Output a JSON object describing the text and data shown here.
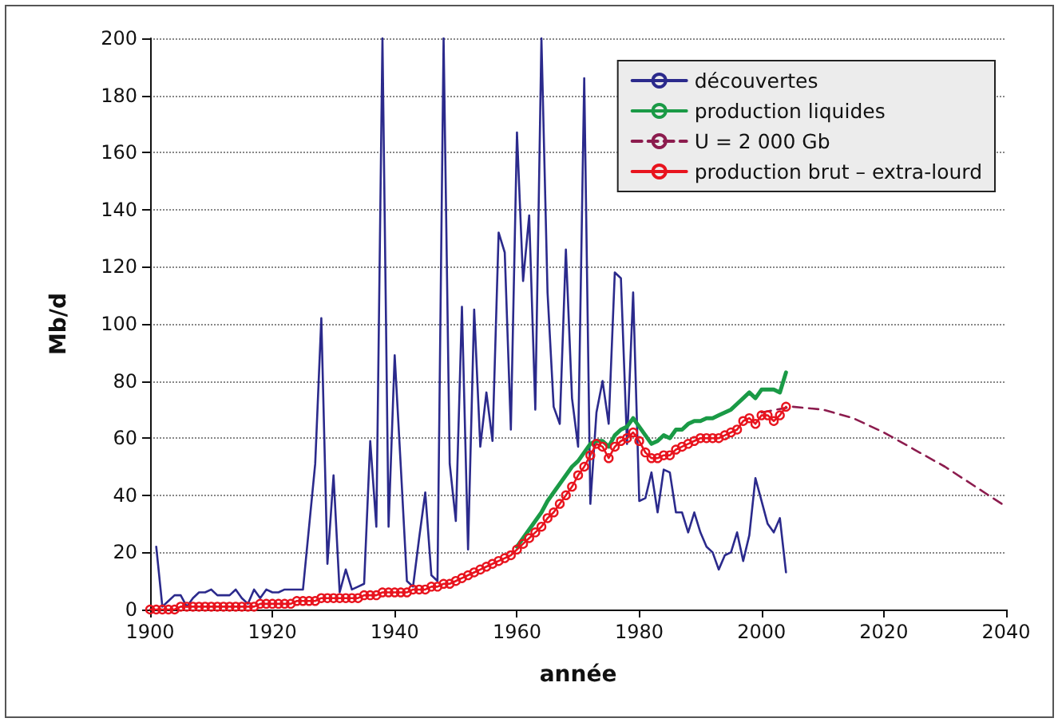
{
  "chart_data": {
    "type": "line",
    "xlabel": "année",
    "ylabel": "Mb/d",
    "xlim": [
      1900,
      2040
    ],
    "xticks": [
      1900,
      1920,
      1940,
      1960,
      1980,
      2000,
      2020,
      2040
    ],
    "ylim": [
      0,
      200
    ],
    "yticks": [
      0,
      20,
      40,
      60,
      80,
      100,
      120,
      140,
      160,
      180,
      200
    ],
    "grid": "y",
    "legend": "top right",
    "series": [
      {
        "name": "découvertes",
        "color": "#2b2a8c",
        "marker": "none",
        "line_style": "solid",
        "x": [
          1901,
          1902,
          1903,
          1904,
          1905,
          1906,
          1907,
          1908,
          1909,
          1910,
          1911,
          1912,
          1913,
          1914,
          1915,
          1916,
          1917,
          1918,
          1919,
          1920,
          1921,
          1922,
          1923,
          1924,
          1925,
          1926,
          1927,
          1928,
          1929,
          1930,
          1931,
          1932,
          1933,
          1934,
          1935,
          1936,
          1937,
          1938,
          1939,
          1940,
          1941,
          1942,
          1943,
          1944,
          1945,
          1946,
          1947,
          1948,
          1949,
          1950,
          1951,
          1952,
          1953,
          1954,
          1955,
          1956,
          1957,
          1958,
          1959,
          1960,
          1961,
          1962,
          1963,
          1964,
          1965,
          1966,
          1967,
          1968,
          1969,
          1970,
          1971,
          1972,
          1973,
          1974,
          1975,
          1976,
          1977,
          1978,
          1979,
          1980,
          1981,
          1982,
          1983,
          1984,
          1985,
          1986,
          1987,
          1988,
          1989,
          1990,
          1991,
          1992,
          1993,
          1994,
          1995,
          1996,
          1997,
          1998,
          1999,
          2000,
          2001,
          2002,
          2003,
          2004
        ],
        "values": [
          22,
          1,
          3,
          5,
          5,
          1,
          4,
          6,
          6,
          7,
          5,
          5,
          5,
          7,
          4,
          2,
          7,
          4,
          7,
          6,
          6,
          7,
          7,
          7,
          7,
          29,
          51,
          102,
          16,
          47,
          6,
          14,
          7,
          8,
          9,
          59,
          29,
          200,
          29,
          89,
          50,
          10,
          8,
          25,
          41,
          12,
          10,
          200,
          51,
          31,
          106,
          21,
          105,
          57,
          76,
          59,
          132,
          125,
          63,
          167,
          115,
          138,
          70,
          200,
          111,
          71,
          65,
          126,
          74,
          57,
          186,
          37,
          69,
          80,
          65,
          118,
          116,
          58,
          111,
          38,
          39,
          48,
          34,
          49,
          48,
          34,
          34,
          27,
          34,
          27,
          22,
          20,
          14,
          19,
          20,
          27,
          17,
          26,
          46,
          38,
          30,
          27,
          32,
          13
        ]
      },
      {
        "name": "production liquides",
        "color": "#1a9a46",
        "marker": "none",
        "line_style": "solid",
        "x": [
          1960,
          1961,
          1962,
          1963,
          1964,
          1965,
          1966,
          1967,
          1968,
          1969,
          1970,
          1971,
          1972,
          1973,
          1974,
          1975,
          1976,
          1977,
          1978,
          1979,
          1980,
          1981,
          1982,
          1983,
          1984,
          1985,
          1986,
          1987,
          1988,
          1989,
          1990,
          1991,
          1992,
          1993,
          1994,
          1995,
          1996,
          1997,
          1998,
          1999,
          2000,
          2001,
          2002,
          2003,
          2004
        ],
        "values": [
          22,
          25,
          28,
          31,
          34,
          38,
          41,
          44,
          47,
          50,
          52,
          55,
          58,
          59,
          59,
          57,
          61,
          63,
          64,
          67,
          64,
          61,
          58,
          59,
          61,
          60,
          63,
          63,
          65,
          66,
          66,
          67,
          67,
          68,
          69,
          70,
          72,
          74,
          76,
          74,
          77,
          77,
          77,
          76,
          83
        ]
      },
      {
        "name": "U = 2 000 Gb",
        "color": "#8c1c4e",
        "marker": "none",
        "line_style": "dashed",
        "x": [
          2000,
          2005,
          2010,
          2015,
          2020,
          2025,
          2030,
          2035,
          2040
        ],
        "values": [
          69,
          71,
          70,
          67,
          62,
          56,
          50,
          43,
          36
        ]
      },
      {
        "name": "production brut – extra-lourd",
        "color": "#e8141e",
        "marker": "circle",
        "line_style": "solid",
        "x": [
          1900,
          1901,
          1902,
          1903,
          1904,
          1905,
          1906,
          1907,
          1908,
          1909,
          1910,
          1911,
          1912,
          1913,
          1914,
          1915,
          1916,
          1917,
          1918,
          1919,
          1920,
          1921,
          1922,
          1923,
          1924,
          1925,
          1926,
          1927,
          1928,
          1929,
          1930,
          1931,
          1932,
          1933,
          1934,
          1935,
          1936,
          1937,
          1938,
          1939,
          1940,
          1941,
          1942,
          1943,
          1944,
          1945,
          1946,
          1947,
          1948,
          1949,
          1950,
          1951,
          1952,
          1953,
          1954,
          1955,
          1956,
          1957,
          1958,
          1959,
          1960,
          1961,
          1962,
          1963,
          1964,
          1965,
          1966,
          1967,
          1968,
          1969,
          1970,
          1971,
          1972,
          1973,
          1974,
          1975,
          1976,
          1977,
          1978,
          1979,
          1980,
          1981,
          1982,
          1983,
          1984,
          1985,
          1986,
          1987,
          1988,
          1989,
          1990,
          1991,
          1992,
          1993,
          1994,
          1995,
          1996,
          1997,
          1998,
          1999,
          2000,
          2001,
          2002,
          2003,
          2004
        ],
        "values": [
          0,
          0,
          0,
          0,
          0,
          1,
          1,
          1,
          1,
          1,
          1,
          1,
          1,
          1,
          1,
          1,
          1,
          1,
          2,
          2,
          2,
          2,
          2,
          2,
          3,
          3,
          3,
          3,
          4,
          4,
          4,
          4,
          4,
          4,
          4,
          5,
          5,
          5,
          6,
          6,
          6,
          6,
          6,
          7,
          7,
          7,
          8,
          8,
          9,
          9,
          10,
          11,
          12,
          13,
          14,
          15,
          16,
          17,
          18,
          19,
          21,
          23,
          25,
          27,
          29,
          32,
          34,
          37,
          40,
          43,
          47,
          50,
          54,
          58,
          57,
          53,
          57,
          59,
          60,
          62,
          59,
          55,
          53,
          53,
          54,
          54,
          56,
          57,
          58,
          59,
          60,
          60,
          60,
          60,
          61,
          62,
          63,
          66,
          67,
          65,
          68,
          68,
          66,
          68,
          71
        ]
      }
    ]
  }
}
